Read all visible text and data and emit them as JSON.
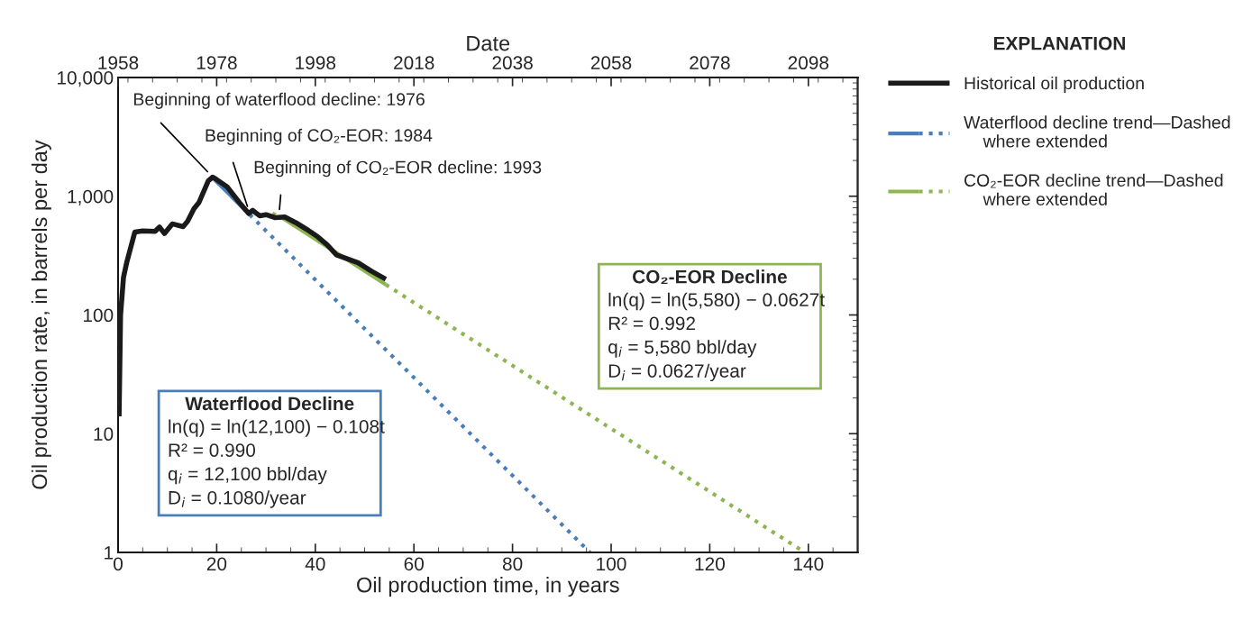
{
  "chart_data": {
    "type": "line",
    "xlabel": "Oil production time, in years",
    "ylabel": "Oil production rate, in barrels per day",
    "x2label": "Date",
    "legend_title": "EXPLANATION",
    "legend": "right",
    "log": "y",
    "grid": false,
    "xlim": [
      0,
      150
    ],
    "xticks": [
      0,
      20,
      40,
      60,
      80,
      100,
      120,
      140
    ],
    "x2lim": [
      1958,
      2108
    ],
    "x2ticks": [
      1958,
      1978,
      1998,
      2018,
      2038,
      2058,
      2078,
      2098
    ],
    "ylim": [
      1,
      10000
    ],
    "yticks": [
      1,
      10,
      100,
      {
        "value": 1000,
        "label": "1,000"
      },
      {
        "value": 10000,
        "label": "10,000"
      }
    ],
    "series": [
      {
        "name": "Historical oil production",
        "color": "#1a1a1a",
        "line_style": "solid",
        "x": [
          0.2,
          0.5,
          1.1,
          1.8,
          3.4,
          5.0,
          7.5,
          8.4,
          9.4,
          11.0,
          13.2,
          14.1,
          15.4,
          16.4,
          18.3,
          19.2,
          19.9,
          22.1,
          24.6,
          26.5,
          27.3,
          28.7,
          30.0,
          31.9,
          33.8,
          36.0,
          38.6,
          40.5,
          42.4,
          44.3,
          46.2,
          48.7,
          51.3,
          54.3
        ],
        "values": [
          14,
          100,
          208,
          282,
          500,
          510,
          505,
          550,
          485,
          585,
          555,
          615,
          785,
          885,
          1350,
          1450,
          1390,
          1200,
          885,
          715,
          760,
          685,
          700,
          660,
          670,
          600,
          515,
          455,
          390,
          320,
          300,
          275,
          235,
          200
        ]
      },
      {
        "name": "Waterflood decline trend—Dashed where extended",
        "color": "#4a7ebb",
        "line_style": "solid",
        "x": [
          19.5,
          26.7
        ],
        "values": [
          1390,
          700
        ]
      },
      {
        "color": "#4a7ebb",
        "line_style": "dotted",
        "x": [
          26.7,
          95.7
        ],
        "values": [
          700,
          1
        ]
      },
      {
        "name": "CO₂-EOR decline trend—Dashed where extended",
        "color": "#8db552",
        "line_style": "solid",
        "x": [
          33.5,
          54.3
        ],
        "values": [
          650,
          180
        ]
      },
      {
        "color": "#8db552",
        "line_style": "dotted",
        "x": [
          31.3,
          33.5,
          44.0,
          54.3,
          139.3
        ],
        "values": [
          716,
          650,
          null,
          180,
          1
        ]
      }
    ],
    "annotations": [
      {
        "text": "Beginning of waterflood decline: 1976",
        "x": 19.2,
        "y": 1450
      },
      {
        "text": "Beginning of CO₂-EOR: 1984",
        "x": 26.7,
        "y": 716
      },
      {
        "text": "Beginning of CO₂-EOR decline: 1993",
        "x": 32.6,
        "y": 670
      },
      "Waterflood Decline",
      "ln(q) = ln(12,100) − 0.108t\nR² = 0.990\nq$_{i}$ = 12,100 bbl/day\nD$_{i}$ = 0.1080/year",
      "CO₂-EOR Decline",
      "ln(q) = ln(5,580) − 0.0627t\nR² = 0.992\nq$_{i}$ = 5,580 bbl/day\nD$_{i}$ = 0.0627/year"
    ]
  }
}
